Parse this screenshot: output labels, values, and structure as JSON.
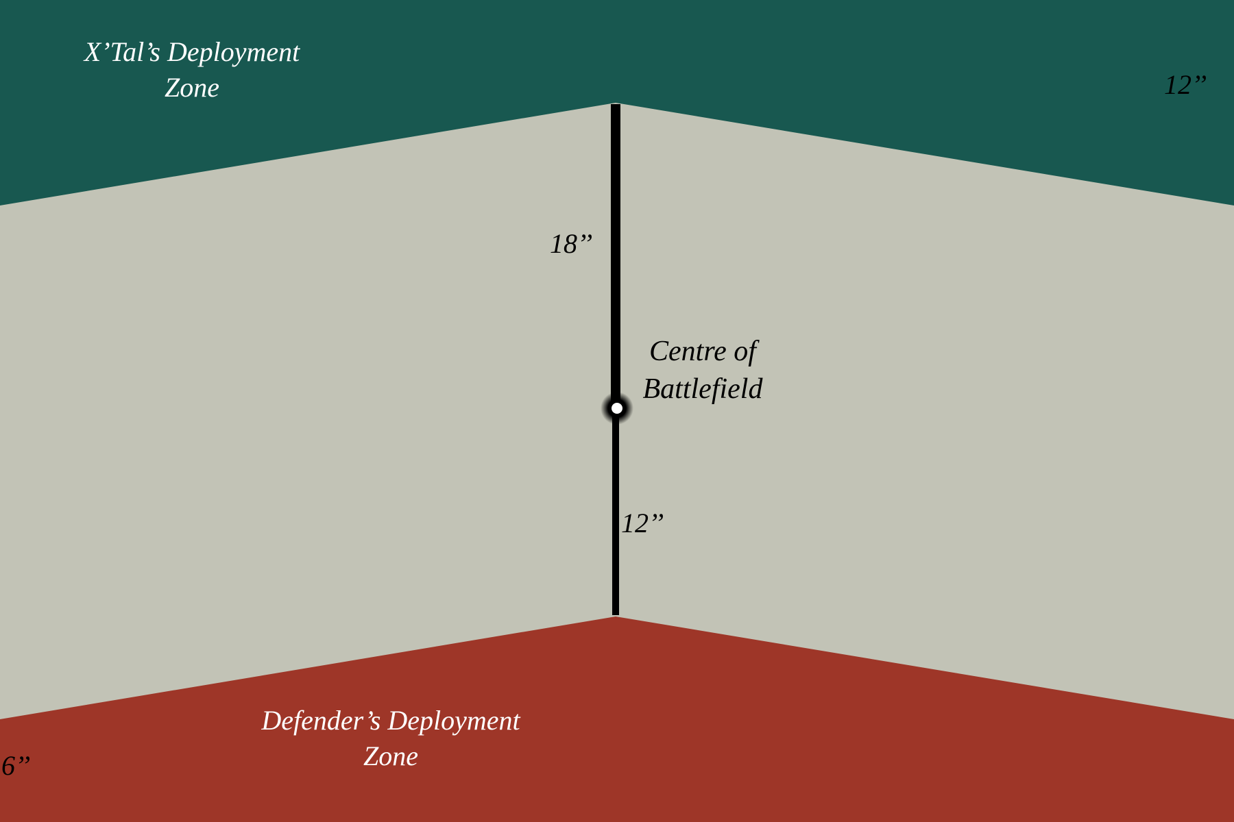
{
  "colors": {
    "background": "#c2c3b6",
    "attacker_zone": "#185850",
    "defender_zone": "#9e3628",
    "line": "#000000",
    "marker_fill": "#ffffff"
  },
  "attacker_zone": {
    "label_line1": "X’Tal’s Deployment",
    "label_line2": "Zone",
    "label_color": "#ffffff",
    "depth_label": "12’’"
  },
  "defender_zone": {
    "label_line1": "Defender’s Deployment",
    "label_line2": "Zone",
    "label_color": "#ffffff",
    "depth_label": "6’’"
  },
  "centre": {
    "label_line1": "Centre of",
    "label_line2": "Battlefield"
  },
  "measure_to_attacker": "18’’",
  "measure_to_defender": "12’’"
}
